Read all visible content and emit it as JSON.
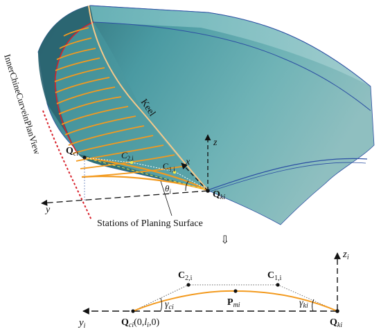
{
  "figure": {
    "view_label": "InnerChineCurveinPlanView",
    "keel_label": "Keel",
    "stations_label": "Stations of Planing Surface",
    "arrow_glyph": "⇩",
    "colors": {
      "hull_dark": "#2f6f78",
      "hull_light": "#8fc7c9",
      "hull_mid": "#5fa3a8",
      "station_orange": "#f39a1e",
      "chine_red": "#d8202a",
      "hull_edge_blue": "#2c4fa3",
      "point_yellow": "#f2e94e",
      "axis_black": "#111111"
    },
    "top_view": {
      "axis_z": "z",
      "axis_x": "x",
      "axis_y": "y",
      "point_Qc": {
        "base": "Q",
        "sub": "ci"
      },
      "point_Qk": {
        "base": "Q",
        "sub": "ki"
      },
      "point_C2": {
        "base": "C",
        "sub": "2,i"
      },
      "point_C1": {
        "base": "C",
        "sub": "1,i"
      },
      "angle_theta": {
        "base": "θ",
        "sub": "i"
      }
    },
    "bottom_view": {
      "axis_z": {
        "base": "z",
        "sub": "i"
      },
      "axis_y": {
        "base": "y",
        "sub": "i"
      },
      "point_C2": {
        "base": "C",
        "sub": "2,i"
      },
      "point_C1": {
        "base": "C",
        "sub": "1,i"
      },
      "point_Pm": {
        "base": "P",
        "sub": "mi"
      },
      "point_Qk": {
        "base": "Q",
        "sub": "ki"
      },
      "point_Qc": {
        "base": "Q",
        "sub": "ci",
        "suffix": "(0,",
        "coord_l": "l",
        "coord_l_sub": "i",
        "coord_end": ",0)"
      },
      "angle_gc": {
        "base": "γ",
        "sub": "ci"
      },
      "angle_gk": {
        "base": "γ",
        "sub": "ki"
      }
    }
  }
}
